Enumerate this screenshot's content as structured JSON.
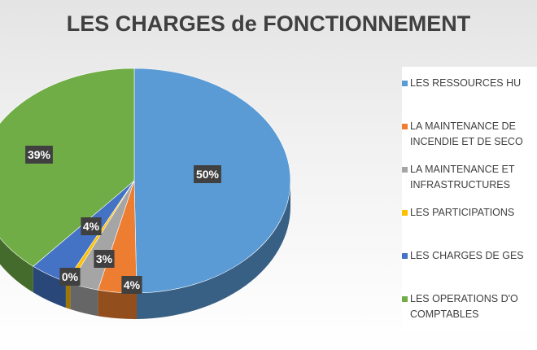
{
  "chart_data": {
    "type": "pie",
    "title": "LES CHARGES de FONCTIONNEMENT",
    "categories": [
      "LES RESSOURCES HU",
      "LA MAINTENANCE DE\nINCENDIE ET DE SECO",
      "LA MAINTENANCE ET\nINFRASTRUCTURES",
      "LES PARTICIPATIONS",
      "LES CHARGES DE GES",
      "LES OPERATIONS D'O\nCOMPTABLES"
    ],
    "values": [
      50,
      4,
      3,
      0.5,
      4,
      39
    ],
    "data_labels": [
      "50%",
      "4%",
      "3%",
      "0%",
      "4%",
      "39%"
    ],
    "colors": [
      "#5b9bd5",
      "#ed7d31",
      "#a5a5a5",
      "#ffc000",
      "#4472c4",
      "#70ad47"
    ],
    "legend_position": "right",
    "style": "3d"
  }
}
